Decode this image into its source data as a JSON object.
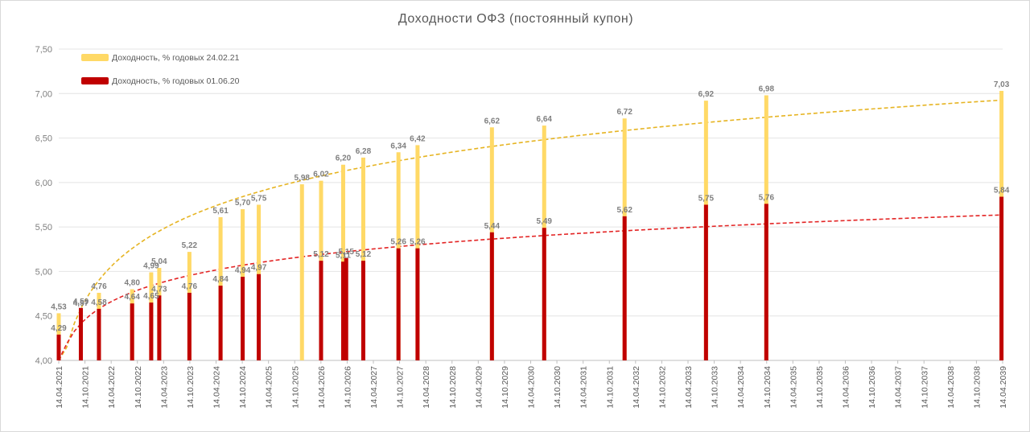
{
  "chart_data": {
    "type": "bar",
    "title": "Доходности ОФЗ (постоянный купон)",
    "ylim": [
      4.0,
      7.5
    ],
    "yticks": [
      "4,00",
      "4,50",
      "5,00",
      "5,50",
      "6,00",
      "6,50",
      "7,00",
      "7,50"
    ],
    "x_start": "2021-04-14",
    "x_end": "2039-04-14",
    "x_tick_labels": [
      "14.04.2021",
      "14.10.2021",
      "14.04.2022",
      "14.10.2022",
      "14.04.2023",
      "14.10.2023",
      "14.04.2024",
      "14.10.2024",
      "14.04.2025",
      "14.10.2025",
      "14.04.2026",
      "14.10.2026",
      "14.04.2027",
      "14.10.2027",
      "14.04.2028",
      "14.10.2028",
      "14.04.2029",
      "14.10.2029",
      "14.04.2030",
      "14.10.2030",
      "14.04.2031",
      "14.10.2031",
      "14.04.2032",
      "14.10.2032",
      "14.04.2033",
      "14.10.2033",
      "14.04.2034",
      "14.10.2034",
      "14.04.2035",
      "14.10.2035",
      "14.04.2036",
      "14.10.2036",
      "14.04.2037",
      "14.10.2037",
      "14.04.2038",
      "14.10.2038",
      "14.04.2039"
    ],
    "series": [
      {
        "name": "Доходность, % годовых 24.02.21",
        "color": "#FFD966",
        "trend_color": "#E6B422",
        "points": [
          {
            "date": "2021-04-14",
            "value": 4.53,
            "label": "4,53"
          },
          {
            "date": "2021-09-15",
            "value": 4.57,
            "label": "4,57"
          },
          {
            "date": "2022-01-19",
            "value": 4.76,
            "label": "4,76"
          },
          {
            "date": "2022-09-07",
            "value": 4.8,
            "label": "4,80"
          },
          {
            "date": "2023-01-18",
            "value": 4.99,
            "label": "4,99"
          },
          {
            "date": "2023-03-15",
            "value": 5.04,
            "label": "5,04"
          },
          {
            "date": "2023-10-11",
            "value": 5.22,
            "label": "5,22"
          },
          {
            "date": "2024-05-15",
            "value": 5.61,
            "label": "5,61"
          },
          {
            "date": "2024-10-16",
            "value": 5.7,
            "label": "5,70"
          },
          {
            "date": "2025-02-05",
            "value": 5.75,
            "label": "5,75"
          },
          {
            "date": "2025-12-03",
            "value": 5.98,
            "label": "5,98"
          },
          {
            "date": "2026-04-15",
            "value": 6.02,
            "label": "6,02"
          },
          {
            "date": "2026-09-16",
            "value": 6.2,
            "label": "6,20"
          },
          {
            "date": "2027-02-03",
            "value": 6.28,
            "label": "6,28"
          },
          {
            "date": "2027-10-06",
            "value": 6.34,
            "label": "6,34"
          },
          {
            "date": "2028-02-16",
            "value": 6.42,
            "label": "6,42"
          },
          {
            "date": "2029-07-18",
            "value": 6.62,
            "label": "6,62"
          },
          {
            "date": "2030-07-17",
            "value": 6.64,
            "label": "6,64"
          },
          {
            "date": "2032-01-28",
            "value": 6.72,
            "label": "6,72"
          },
          {
            "date": "2033-08-17",
            "value": 6.92,
            "label": "6,92"
          },
          {
            "date": "2034-10-11",
            "value": 6.98,
            "label": "6,98"
          },
          {
            "date": "2039-04-06",
            "value": 7.03,
            "label": "7,03"
          }
        ]
      },
      {
        "name": "Доходность, % годовых 01.06.20",
        "color": "#C00000",
        "trend_color": "#E32424",
        "points": [
          {
            "date": "2021-04-14",
            "value": 4.29,
            "label": "4,29"
          },
          {
            "date": "2021-09-15",
            "value": 4.59,
            "label": "4,59"
          },
          {
            "date": "2022-01-19",
            "value": 4.58,
            "label": "4,58"
          },
          {
            "date": "2022-09-07",
            "value": 4.64,
            "label": "4,64"
          },
          {
            "date": "2023-01-18",
            "value": 4.65,
            "label": "4,65"
          },
          {
            "date": "2023-03-15",
            "value": 4.73,
            "label": "4,73"
          },
          {
            "date": "2023-10-11",
            "value": 4.76,
            "label": "4,76"
          },
          {
            "date": "2024-05-15",
            "value": 4.84,
            "label": "4,84"
          },
          {
            "date": "2024-10-16",
            "value": 4.94,
            "label": "4,94"
          },
          {
            "date": "2025-02-05",
            "value": 4.97,
            "label": "4,97"
          },
          {
            "date": "2026-04-15",
            "value": 5.12,
            "label": "5,12"
          },
          {
            "date": "2026-09-16",
            "value": 5.11,
            "label": "5,11"
          },
          {
            "date": "2026-10-07",
            "value": 5.15,
            "label": "5,15"
          },
          {
            "date": "2027-02-03",
            "value": 5.12,
            "label": "5,12"
          },
          {
            "date": "2027-10-06",
            "value": 5.26,
            "label": "5,26"
          },
          {
            "date": "2028-02-16",
            "value": 5.26,
            "label": "5,26"
          },
          {
            "date": "2029-07-18",
            "value": 5.44,
            "label": "5,44"
          },
          {
            "date": "2030-07-17",
            "value": 5.49,
            "label": "5,49"
          },
          {
            "date": "2032-01-28",
            "value": 5.62,
            "label": "5,62"
          },
          {
            "date": "2033-08-17",
            "value": 5.75,
            "label": "5,75"
          },
          {
            "date": "2034-10-11",
            "value": 5.76,
            "label": "5,76"
          },
          {
            "date": "2039-04-06",
            "value": 5.84,
            "label": "5,84"
          }
        ]
      }
    ],
    "legend": "top-left"
  }
}
